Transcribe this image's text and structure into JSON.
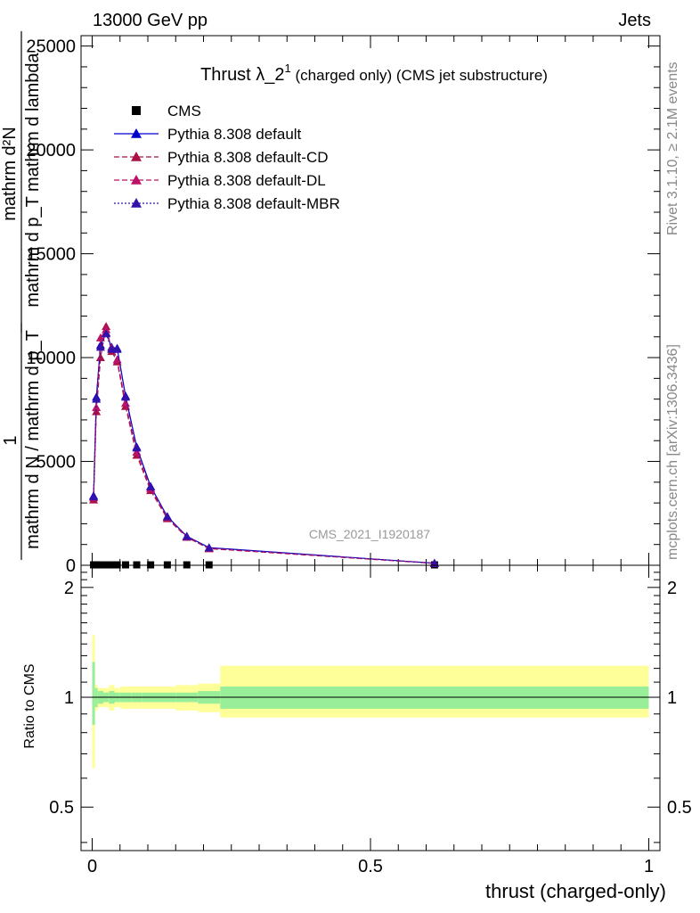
{
  "header": {
    "left": "13000 GeV pp",
    "right": "Jets"
  },
  "side_labels": {
    "rivet": "Rivet 3.1.10, ≥ 2.1M events",
    "mcplots": "mcplots.cern.ch [arXiv:1306.3436]"
  },
  "watermark": "CMS_2021_I1920187",
  "chart_data": [
    {
      "type": "line",
      "title_main": "Thrust λ_2",
      "title_sup": "1",
      "title_rest": " (charged only) (CMS jet substructure)",
      "ylabel_num": "mathrm d²N",
      "ylabel_den": "mathrm d p_T mathrm d lambda",
      "ylabel_factor_num": "1",
      "ylabel_factor_den": "mathrm d N / mathrm d p_T",
      "xlim": [
        -0.02,
        1.02
      ],
      "ylim": [
        0,
        25500
      ],
      "yticks": [
        0,
        5000,
        10000,
        15000,
        20000,
        25000
      ],
      "ytick_labels": [
        "0",
        "5000",
        "10000",
        "15000",
        "20000",
        "25000"
      ],
      "grid": false,
      "legend_placement": "top-left",
      "x": [
        0.0025,
        0.0075,
        0.015,
        0.025,
        0.035,
        0.045,
        0.06,
        0.08,
        0.105,
        0.135,
        0.17,
        0.21,
        0.615
      ],
      "series": [
        {
          "name": "CMS",
          "color": "#000000",
          "marker": "square",
          "line": "none",
          "values": [
            20,
            20,
            20,
            20,
            20,
            20,
            20,
            20,
            20,
            20,
            20,
            20,
            20
          ]
        },
        {
          "name": "Pythia 8.308 default",
          "color": "#0000cc",
          "marker": "triangle",
          "line": "solid",
          "values": [
            3350,
            8100,
            10600,
            11200,
            10500,
            10450,
            8150,
            5700,
            3800,
            2350,
            1400,
            850,
            100
          ]
        },
        {
          "name": "Pythia 8.308 default-CD",
          "color": "#aa1144",
          "marker": "triangle",
          "line": "dashed",
          "values": [
            3150,
            7400,
            10000,
            11500,
            10300,
            9800,
            7650,
            5300,
            3600,
            2250,
            1350,
            800,
            90
          ]
        },
        {
          "name": "Pythia 8.308 default-DL",
          "color": "#bb1166",
          "marker": "triangle",
          "line": "dashed",
          "values": [
            3250,
            7600,
            10950,
            11350,
            10450,
            9900,
            7800,
            5450,
            3700,
            2300,
            1380,
            820,
            95
          ]
        },
        {
          "name": "Pythia 8.308 default-MBR",
          "color": "#3311aa",
          "marker": "triangle",
          "line": "dotted",
          "values": [
            3300,
            8000,
            10500,
            11150,
            10400,
            10400,
            8100,
            5650,
            3780,
            2340,
            1390,
            840,
            98
          ]
        }
      ]
    },
    {
      "type": "area",
      "ylabel": "Ratio to CMS",
      "xlabel": "thrust (charged-only)",
      "xlim": [
        -0.02,
        1.02
      ],
      "ylim": [
        0.38,
        2.3
      ],
      "yticks": [
        0.5,
        1,
        2
      ],
      "ytick_labels": [
        "0.5",
        "1",
        "2"
      ],
      "xticks": [
        0,
        0.5,
        1
      ],
      "xtick_labels": [
        "0",
        "0.5",
        "1"
      ],
      "reference": 1,
      "bin_edges": [
        0,
        0.005,
        0.01,
        0.02,
        0.03,
        0.04,
        0.05,
        0.07,
        0.09,
        0.12,
        0.15,
        0.19,
        0.23,
        1.0
      ],
      "stat_band": [
        [
          0.84,
          1.25
        ],
        [
          0.94,
          1.06
        ],
        [
          0.96,
          1.04
        ],
        [
          0.97,
          1.03
        ],
        [
          0.96,
          1.04
        ],
        [
          0.97,
          1.03
        ],
        [
          0.97,
          1.03
        ],
        [
          0.97,
          1.03
        ],
        [
          0.97,
          1.03
        ],
        [
          0.97,
          1.03
        ],
        [
          0.97,
          1.03
        ],
        [
          0.96,
          1.04
        ],
        [
          0.93,
          1.07
        ]
      ],
      "syst_band": [
        [
          0.64,
          1.48
        ],
        [
          0.92,
          1.08
        ],
        [
          0.94,
          1.06
        ],
        [
          0.94,
          1.06
        ],
        [
          0.92,
          1.08
        ],
        [
          0.94,
          1.06
        ],
        [
          0.93,
          1.07
        ],
        [
          0.93,
          1.07
        ],
        [
          0.93,
          1.07
        ],
        [
          0.93,
          1.07
        ],
        [
          0.92,
          1.08
        ],
        [
          0.91,
          1.09
        ],
        [
          0.88,
          1.22
        ]
      ]
    }
  ]
}
